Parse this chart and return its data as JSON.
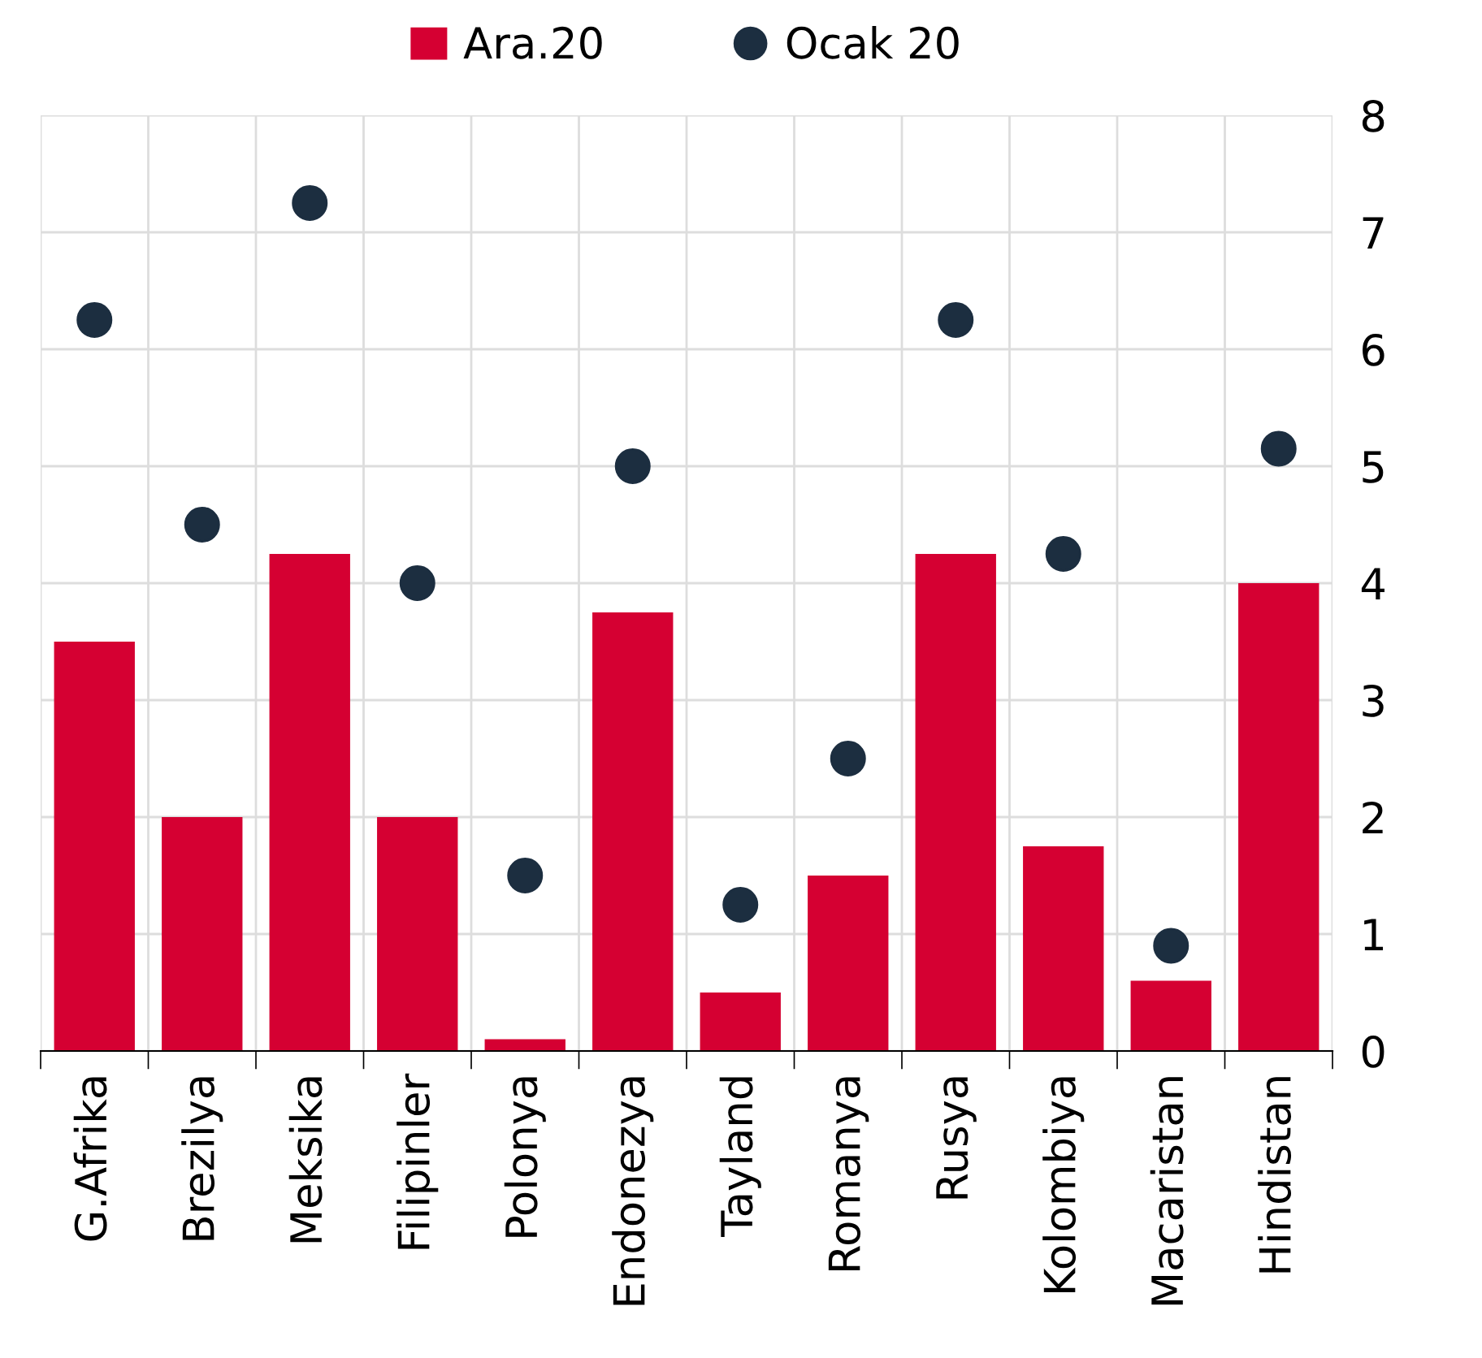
{
  "chart_data": {
    "type": "bar",
    "categories": [
      "G.Afrika",
      "Brezilya",
      "Meksika",
      "Filipinler",
      "Polonya",
      "Endonezya",
      "Tayland",
      "Romanya",
      "Rusya",
      "Kolombiya",
      "Macaristan",
      "Hindistan"
    ],
    "series": [
      {
        "name": "Ara.20",
        "color": "#d50032",
        "values": [
          3.5,
          2.0,
          4.25,
          2.0,
          0.1,
          3.75,
          0.5,
          1.5,
          4.25,
          1.75,
          0.6,
          4.0
        ]
      },
      {
        "name": "Ocak 20",
        "type": "scatter",
        "color": "#1c2e40",
        "marker": "circle",
        "values": [
          6.25,
          4.5,
          7.25,
          4.0,
          1.5,
          5.0,
          1.25,
          2.5,
          6.25,
          4.25,
          0.9,
          5.15
        ]
      }
    ],
    "ylim": [
      0,
      8
    ],
    "yticks": [
      0,
      1,
      2,
      3,
      4,
      5,
      6,
      7,
      8
    ],
    "grid": true,
    "legend": "top"
  }
}
